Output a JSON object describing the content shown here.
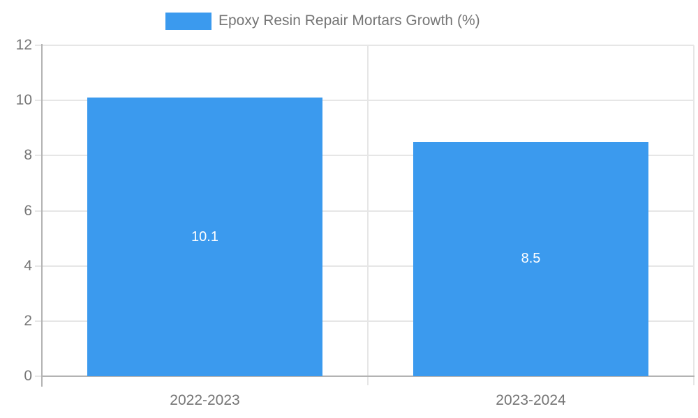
{
  "chart_data": {
    "type": "bar",
    "title": "",
    "legend_label": "Epoxy Resin Repair Mortars Growth (%)",
    "legend_position": "top",
    "categories": [
      "2022-2023",
      "2023-2024"
    ],
    "values": [
      10.1,
      8.5
    ],
    "value_labels": [
      "10.1",
      "8.5"
    ],
    "ylim": [
      0,
      12
    ],
    "yticks": [
      0,
      2,
      4,
      6,
      8,
      10,
      12
    ],
    "grid": "on"
  },
  "colors": {
    "bar": "#3b9aee",
    "grid_line": "#e6e6e6",
    "axis_line": "#b3b3b3",
    "tick_text": "#757575",
    "value_text": "#ffffff",
    "background": "#ffffff"
  }
}
